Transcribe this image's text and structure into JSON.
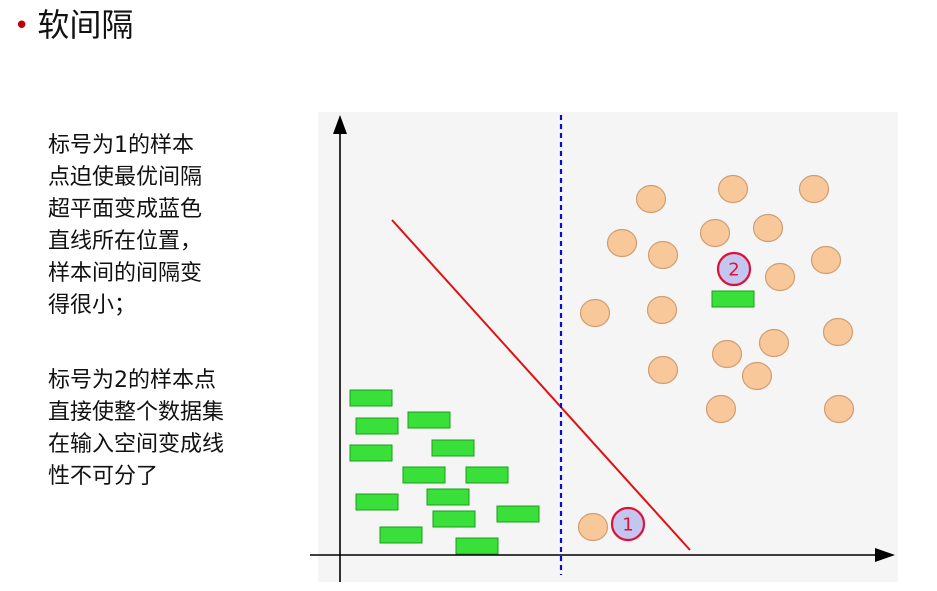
{
  "title": "软间隔",
  "bullet_color": "#c00000",
  "paragraphs": [
    [
      "标号为1的样本",
      "点迫使最优间隔",
      "超平面变成蓝色",
      "直线所在位置，",
      "样本间的间隔变",
      "得很小；"
    ],
    [
      "标号为2的样本点",
      "直接使整个数据集",
      "在输入空间变成线",
      "性不可分了"
    ]
  ],
  "diagram": {
    "colors": {
      "background": "#f5f5f5",
      "circle_fill": "#f8c89a",
      "circle_stroke": "#cf9f72",
      "rect_fill": "#39e039",
      "rect_stroke": "#1a9e1a",
      "marked_fill": "#c3c6ee",
      "marked_stroke": "#e0103a",
      "red_line": "#e01010",
      "blue_line": "#0a0ad0",
      "axis": "#000000"
    },
    "markers": [
      "1",
      "2"
    ]
  }
}
